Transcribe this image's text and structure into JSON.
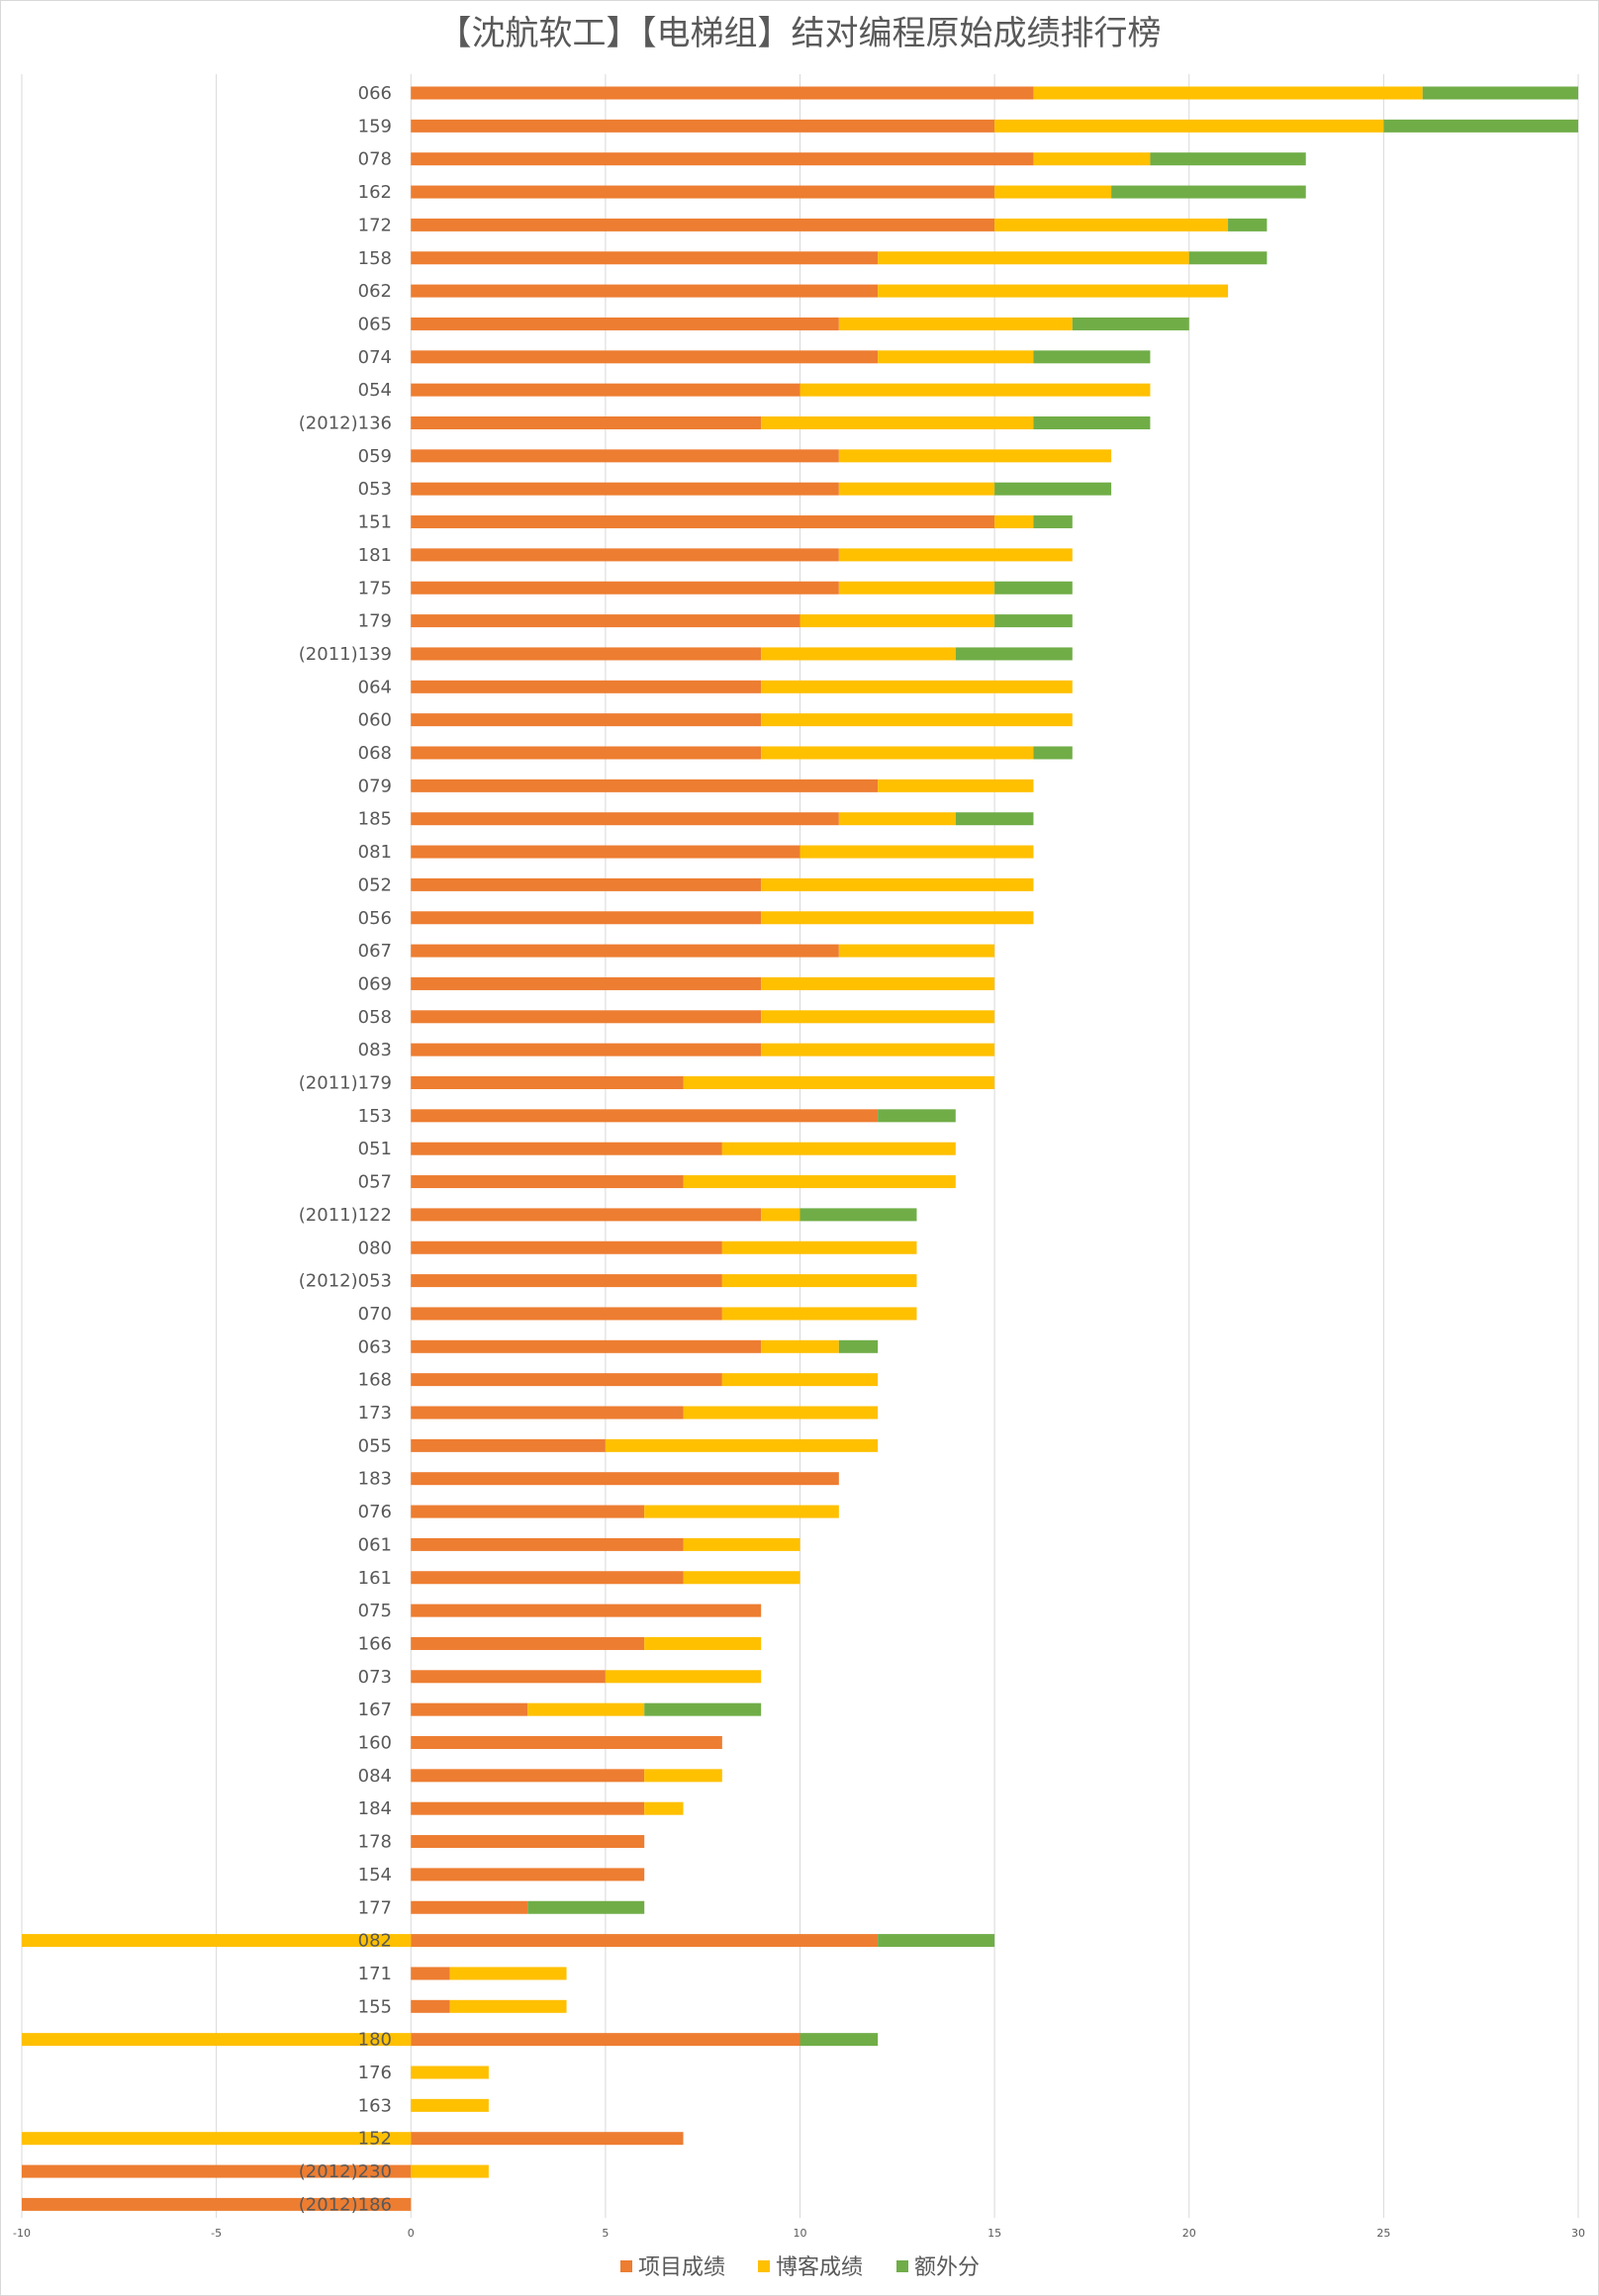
{
  "chart_data": {
    "type": "bar",
    "orientation": "horizontal",
    "stacked": true,
    "title": "【沈航软工】【电梯组】结对编程原始成绩排行榜",
    "categories": [
      "066",
      "159",
      "078",
      "162",
      "172",
      "158",
      "062",
      "065",
      "074",
      "054",
      "(2012)136",
      "059",
      "053",
      "151",
      "181",
      "175",
      "179",
      "(2011)139",
      "064",
      "060",
      "068",
      "079",
      "185",
      "081",
      "052",
      "056",
      "067",
      "069",
      "058",
      "083",
      "(2011)179",
      "153",
      "051",
      "057",
      "(2011)122",
      "080",
      "(2012)053",
      "070",
      "063",
      "168",
      "173",
      "055",
      "183",
      "076",
      "061",
      "161",
      "075",
      "166",
      "073",
      "167",
      "160",
      "084",
      "184",
      "178",
      "154",
      "177",
      "082",
      "171",
      "155",
      "180",
      "176",
      "163",
      "152",
      "(2012)230",
      "(2012)186"
    ],
    "series": [
      {
        "name": "项目成绩",
        "color": "#ED7D31",
        "values": [
          16,
          15,
          16,
          15,
          15,
          12,
          12,
          11,
          12,
          10,
          9,
          11,
          11,
          15,
          11,
          11,
          10,
          9,
          9,
          9,
          9,
          12,
          11,
          10,
          9,
          9,
          11,
          9,
          9,
          9,
          7,
          12,
          8,
          7,
          9,
          8,
          8,
          8,
          9,
          8,
          7,
          5,
          11,
          6,
          7,
          7,
          9,
          6,
          5,
          3,
          8,
          6,
          6,
          6,
          6,
          3,
          12,
          1,
          1,
          10,
          0,
          0,
          7,
          -10,
          -10
        ]
      },
      {
        "name": "博客成绩",
        "color": "#FFC000",
        "values": [
          10,
          10,
          3,
          3,
          6,
          8,
          9,
          6,
          4,
          9,
          7,
          7,
          4,
          1,
          6,
          4,
          5,
          5,
          8,
          8,
          7,
          4,
          3,
          6,
          7,
          7,
          4,
          6,
          6,
          6,
          8,
          0,
          6,
          7,
          1,
          5,
          5,
          5,
          2,
          4,
          5,
          7,
          0,
          5,
          3,
          3,
          0,
          3,
          4,
          3,
          0,
          2,
          1,
          0,
          0,
          0,
          -10,
          3,
          3,
          -10,
          2,
          2,
          -10,
          2,
          0
        ]
      },
      {
        "name": "额外分",
        "color": "#70AD47",
        "values": [
          4,
          5,
          4,
          5,
          1,
          2,
          0,
          3,
          3,
          0,
          3,
          0,
          3,
          1,
          0,
          2,
          2,
          3,
          0,
          0,
          1,
          0,
          2,
          0,
          0,
          0,
          0,
          0,
          0,
          0,
          0,
          2,
          0,
          0,
          3,
          0,
          0,
          0,
          1,
          0,
          0,
          0,
          0,
          0,
          0,
          0,
          0,
          0,
          0,
          3,
          0,
          0,
          0,
          0,
          0,
          3,
          3,
          0,
          0,
          2,
          0,
          0,
          0,
          0,
          0
        ]
      }
    ],
    "xlim": [
      -10,
      30
    ],
    "xticks": [
      -10,
      -5,
      0,
      5,
      10,
      15,
      20,
      25,
      30
    ],
    "xlabel": "",
    "ylabel": "",
    "grid": "vertical",
    "legend": "bottom"
  }
}
